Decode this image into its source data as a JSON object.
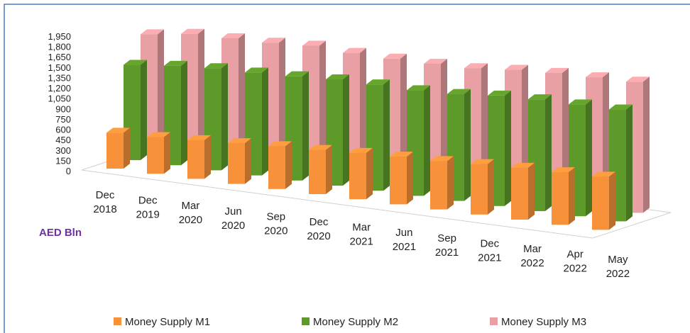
{
  "chart_data": {
    "type": "bar3d",
    "y_axis_label": "AED Bln",
    "categories": [
      "Dec 2018",
      "Dec 2019",
      "Mar 2020",
      "Jun 2020",
      "Sep 2020",
      "Dec 2020",
      "Mar 2021",
      "Jun 2021",
      "Sep 2021",
      "Dec 2021",
      "Mar 2022",
      "Apr 2022",
      "May 2022"
    ],
    "series": [
      {
        "name": "Money Supply M1",
        "color": "#f7923a",
        "values": [
          520,
          530,
          560,
          590,
          620,
          640,
          670,
          690,
          700,
          730,
          750,
          760,
          770
        ]
      },
      {
        "name": "Money Supply M2",
        "color": "#5e9a2a",
        "values": [
          1380,
          1440,
          1480,
          1490,
          1510,
          1540,
          1540,
          1530,
          1550,
          1600,
          1620,
          1620,
          1620
        ]
      },
      {
        "name": "Money Supply M3",
        "color": "#e8a0a4",
        "values": [
          1700,
          1780,
          1790,
          1800,
          1830,
          1800,
          1790,
          1790,
          1800,
          1850,
          1880,
          1890,
          1900
        ]
      }
    ],
    "ylim": [
      0,
      1950
    ],
    "yticks": [
      0,
      150,
      300,
      450,
      600,
      750,
      900,
      {
        "value": 1050,
        "label": "1,050"
      },
      {
        "value": 1200,
        "label": "1,200"
      },
      {
        "value": 1350,
        "label": "1,350"
      },
      {
        "value": 1500,
        "label": "1,500"
      },
      {
        "value": 1650,
        "label": "1,650"
      },
      {
        "value": 1800,
        "label": "1,800"
      },
      {
        "value": 1950,
        "label": "1,950"
      }
    ],
    "legend": "bottom"
  }
}
